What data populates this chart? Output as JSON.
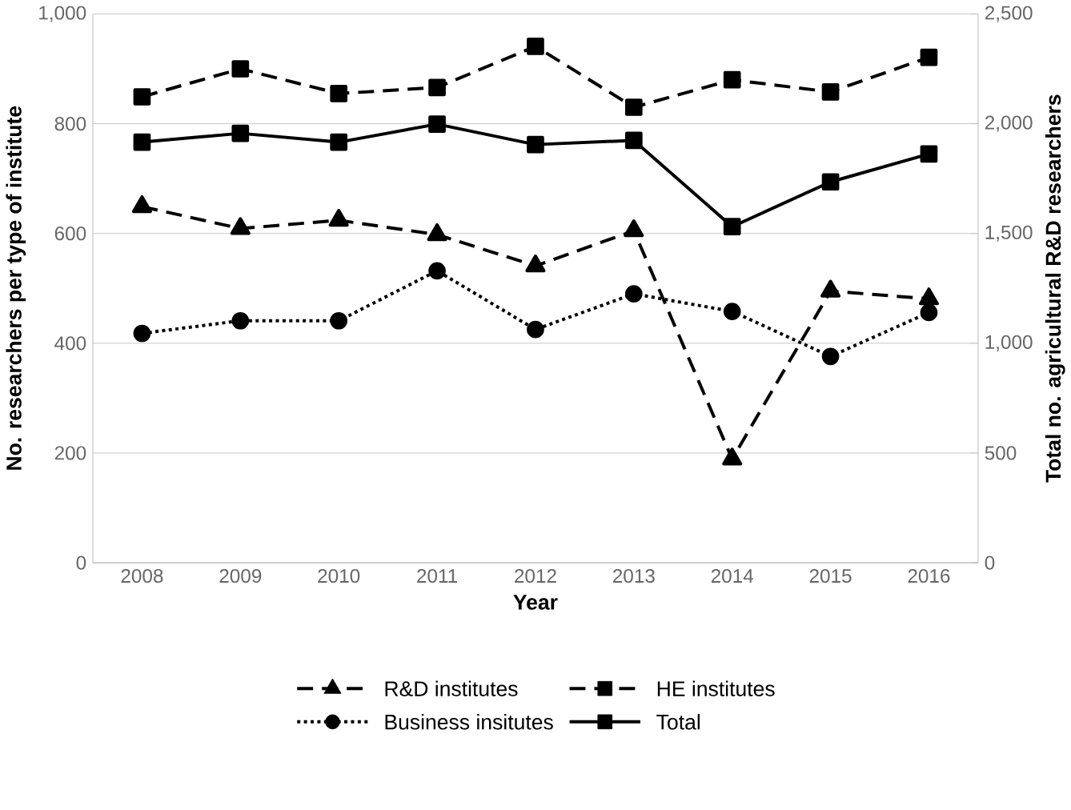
{
  "chart_data": {
    "type": "line",
    "xlabel": "Year",
    "ylabel": "No. researchers per type of institute",
    "y2label": "Total no. agricultural R&D researchers",
    "categories": [
      "2008",
      "2009",
      "2010",
      "2011",
      "2012",
      "2013",
      "2014",
      "2015",
      "2016"
    ],
    "series": [
      {
        "name": "R&D institutes",
        "color": "#000000",
        "marker": "triangle",
        "line_style": "dashed",
        "values": [
          649,
          609,
          624,
          598,
          541,
          605,
          189,
          495,
          481
        ]
      },
      {
        "name": "HE institutes",
        "color": "#000000",
        "marker": "square",
        "line_style": "dashed",
        "values": [
          849,
          900,
          855,
          866,
          941,
          830,
          880,
          858,
          921
        ]
      },
      {
        "name": "Business insitutes",
        "color": "#000000",
        "marker": "circle",
        "line_style": "dotted",
        "values": [
          418,
          441,
          441,
          532,
          425,
          490,
          458,
          376,
          456
        ]
      },
      {
        "name": "Total",
        "color": "#000000",
        "marker": "square",
        "line_style": "solid",
        "axis": "y2",
        "values": [
          1916,
          1956,
          1916,
          1998,
          1905,
          1924,
          1531,
          1735,
          1862
        ]
      }
    ],
    "ylim": [
      0,
      1000
    ],
    "yticks": [
      0,
      {
        "value": 200,
        "label": "200"
      },
      {
        "value": 400,
        "label": "400"
      },
      {
        "value": 600,
        "label": "600"
      },
      {
        "value": 800,
        "label": "800"
      },
      {
        "value": 1000,
        "label": "1,000"
      }
    ],
    "y2lim": [
      0,
      2500
    ],
    "y2ticks": [
      0,
      {
        "value": 500,
        "label": "500"
      },
      {
        "value": 1000,
        "label": "1,000"
      },
      {
        "value": 1500,
        "label": "1,500"
      },
      {
        "value": 2000,
        "label": "2,000"
      },
      {
        "value": 2500,
        "label": "2,500"
      }
    ],
    "grid": "y",
    "legend": "bottom"
  }
}
